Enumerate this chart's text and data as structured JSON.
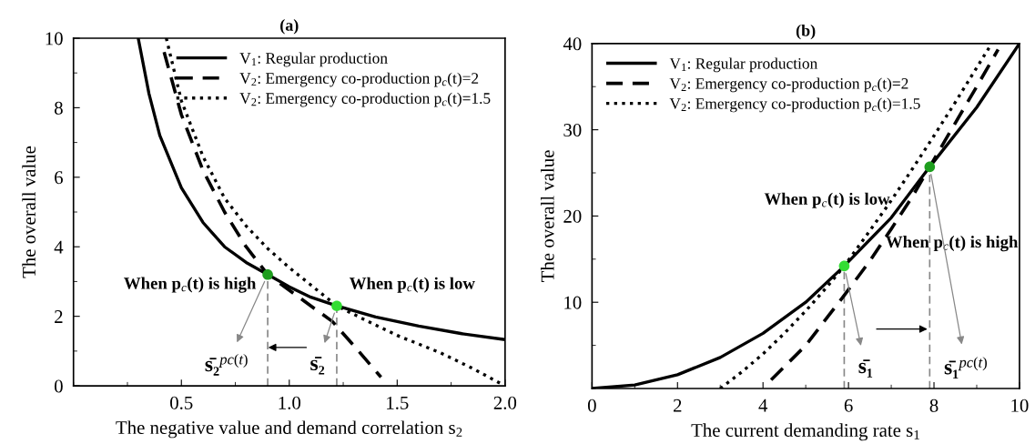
{
  "chart_data": [
    {
      "type": "line",
      "title": "(a)",
      "xlabel": "The negative value and demand correlation s$_{2}$",
      "ylabel": "The overall value",
      "xlim": [
        0,
        2
      ],
      "xticks": [
        0.5,
        {
          "value": 1,
          "label": "1.0"
        },
        1.5,
        {
          "value": 2,
          "label": "2.0"
        }
      ],
      "ylim": [
        0,
        10
      ],
      "yticks": [
        0,
        2,
        4,
        6,
        8,
        10
      ],
      "grid": false,
      "legend": "top right",
      "series": [
        {
          "name": "V$_{1}$: Regular production",
          "color": "#000000",
          "line_style": "solid",
          "x": [
            0.3,
            0.35,
            0.4,
            0.5,
            0.6,
            0.7,
            0.8,
            0.9,
            1.0,
            1.1,
            1.22,
            1.4,
            1.6,
            1.8,
            2.0
          ],
          "values": [
            10,
            8.4,
            7.2,
            5.7,
            4.7,
            4.0,
            3.55,
            3.2,
            2.85,
            2.55,
            2.3,
            1.98,
            1.72,
            1.5,
            1.33
          ]
        },
        {
          "name": "V$_{2}$: Emergency co-production p$_{c}$(t)=2",
          "color": "#000000",
          "line_style": "dashed",
          "x": [
            0.42,
            0.5,
            0.6,
            0.7,
            0.8,
            0.9,
            1.0,
            1.1,
            1.2,
            1.3,
            1.425
          ],
          "values": [
            9.6,
            7.8,
            6.2,
            5.0,
            4.0,
            3.2,
            2.75,
            2.3,
            1.85,
            1.15,
            0.25
          ]
        },
        {
          "name": "V$_{2}$: Emergency co-production p$_{c}$(t)=1.5",
          "color": "#000000",
          "line_style": "dotted",
          "x": [
            0.43,
            0.5,
            0.6,
            0.7,
            0.8,
            0.9,
            1.0,
            1.1,
            1.22,
            1.35,
            1.5,
            1.7,
            1.85,
            1.99
          ],
          "values": [
            10,
            8.2,
            6.6,
            5.4,
            4.6,
            3.95,
            3.4,
            2.9,
            2.3,
            1.9,
            1.45,
            0.95,
            0.5,
            0.03
          ]
        },
        {
          "color": "#888888",
          "line_style": "dashed",
          "x": [
            0.9,
            0.9
          ],
          "values": [
            0,
            3.2
          ]
        },
        {
          "color": "#888888",
          "line_style": "dashed",
          "x": [
            1.22,
            1.22
          ],
          "values": [
            0,
            2.3
          ]
        },
        {
          "type": "scatter",
          "x": [
            0.9,
            1.22
          ],
          "values": [
            3.2,
            2.3
          ],
          "colors": [
            "#1e9e1e",
            "#33dd33"
          ]
        }
      ],
      "annotations": [
        "When p$_{c}$(t) is high",
        "When p$_{c}$(t) is low",
        {
          "text": "s̄₂$^{pc(t)}$",
          "x": 0.9,
          "y": 3.2
        },
        {
          "text": "s̄₂",
          "x": 1.22,
          "y": 2.3
        }
      ]
    },
    {
      "type": "line",
      "title": "(b)",
      "xlabel": "The current demanding rate s$_{1}$",
      "ylabel": "The overall value",
      "xlim": [
        0,
        10
      ],
      "xticks": [
        0,
        2,
        4,
        6,
        8,
        10
      ],
      "ylim": [
        0,
        40
      ],
      "yticks": [
        10,
        20,
        30,
        40
      ],
      "grid": false,
      "legend": "top left",
      "series": [
        {
          "name": "V$_{1}$: Regular production",
          "color": "#000000",
          "line_style": "solid",
          "x": [
            0,
            1,
            2,
            3,
            4,
            5,
            5.9,
            7,
            7.9,
            9,
            10
          ],
          "values": [
            0,
            0.4,
            1.6,
            3.6,
            6.4,
            10,
            14.2,
            19.8,
            25.7,
            32.6,
            40
          ]
        },
        {
          "name": "V$_{2}$: Emergency co-production p$_{c}$(t)=2",
          "color": "#000000",
          "line_style": "dashed",
          "x": [
            4.19,
            5,
            5.9,
            6.5,
            7,
            7.5,
            7.9,
            8.5,
            9,
            9.5
          ],
          "values": [
            1.0,
            5.0,
            10.8,
            14.8,
            18.5,
            22.3,
            25.7,
            30.8,
            35.0,
            39.3
          ]
        },
        {
          "name": "V$_{2}$: Emergency co-production p$_{c}$(t)=1.5",
          "color": "#000000",
          "line_style": "dotted",
          "x": [
            3,
            3.5,
            4,
            4.5,
            5,
            5.5,
            5.9,
            6.5,
            7,
            7.5,
            8,
            8.5,
            9,
            9.35
          ],
          "values": [
            0,
            1.9,
            4.0,
            6.4,
            9.0,
            11.8,
            14.2,
            18.3,
            21.8,
            25.5,
            29.3,
            33.2,
            37.2,
            40
          ]
        },
        {
          "color": "#888888",
          "line_style": "dashed",
          "x": [
            5.9,
            5.9
          ],
          "values": [
            0,
            14.2
          ]
        },
        {
          "color": "#888888",
          "line_style": "dashed",
          "x": [
            7.9,
            7.9
          ],
          "values": [
            0,
            25.7
          ]
        },
        {
          "type": "scatter",
          "x": [
            5.9,
            7.9
          ],
          "values": [
            14.2,
            25.7
          ],
          "colors": [
            "#33dd33",
            "#1e9e1e"
          ]
        }
      ],
      "annotations": [
        "When p$_{c}$(t) is low",
        "When p$_{c}$(t) is high",
        {
          "text": "s̄₁",
          "x": 5.9,
          "y": 14.2
        },
        {
          "text": "s̄₁$^{pc(t)}$",
          "x": 7.9,
          "y": 25.7
        }
      ]
    }
  ]
}
